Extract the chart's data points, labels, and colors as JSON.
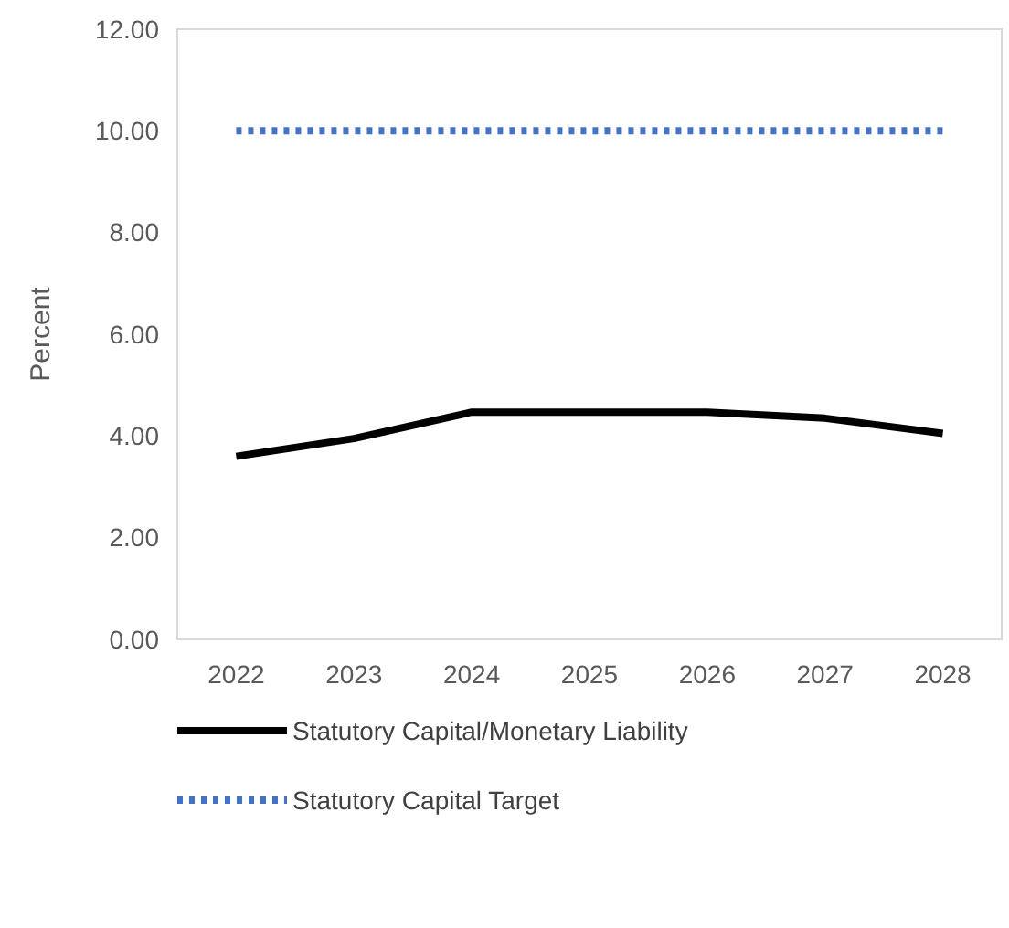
{
  "chart_data": {
    "type": "line",
    "ylabel": "Percent",
    "categories": [
      "2022",
      "2023",
      "2024",
      "2025",
      "2026",
      "2027",
      "2028"
    ],
    "series": [
      {
        "name": "Statutory Capital/Monetary Liability",
        "color": "#000000",
        "values": [
          3.6,
          3.95,
          4.47,
          4.47,
          4.47,
          4.35,
          4.05
        ],
        "line_style": "solid"
      },
      {
        "name": "Statutory Capital Target",
        "color": "#4472c4",
        "values": [
          10,
          10,
          10,
          10,
          10,
          10,
          10
        ],
        "line_style": "dotted"
      }
    ],
    "ylim": [
      0,
      12
    ],
    "yticks": [
      {
        "value": 0,
        "label": "0.00"
      },
      {
        "value": 2,
        "label": "2.00"
      },
      {
        "value": 4,
        "label": "4.00"
      },
      {
        "value": 6,
        "label": "6.00"
      },
      {
        "value": 8,
        "label": "8.00"
      },
      {
        "value": 10,
        "label": "10.00"
      },
      {
        "value": 12,
        "label": "12.00"
      }
    ],
    "grid": false,
    "legend": "bottom",
    "marker": "none"
  }
}
